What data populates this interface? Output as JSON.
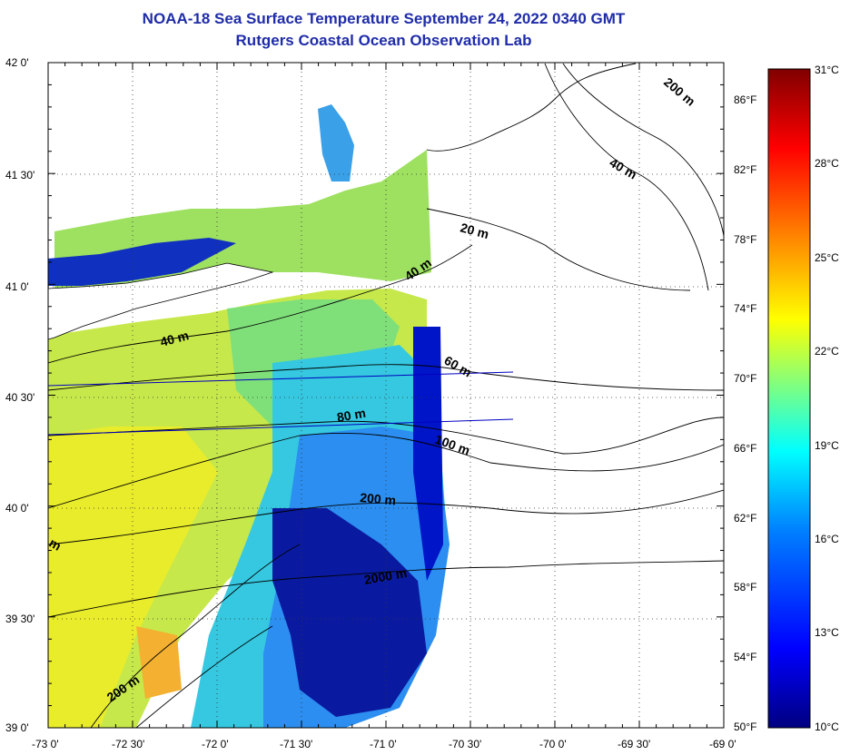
{
  "title": "NOAA-18 Sea Surface Temperature September 24, 2022 0340 GMT",
  "subtitle": "Rutgers Coastal Ocean Observation Lab",
  "lat_labels": [
    "42 0'",
    "41 30'",
    "41 0'",
    "40 30'",
    "40 0'",
    "39 30'",
    "39 0'"
  ],
  "lon_labels": [
    "-73 0'",
    "-72 30'",
    "-72 0'",
    "-71 30'",
    "-71 0'",
    "-70 30'",
    "-70 0'",
    "-69 30'",
    "-69 0'"
  ],
  "fahrenheit_labels": [
    "86°F",
    "82°F",
    "78°F",
    "74°F",
    "70°F",
    "66°F",
    "62°F",
    "58°F",
    "54°F",
    "50°F"
  ],
  "celsius_labels": [
    "31°C",
    "28°C",
    "25°C",
    "22°C",
    "19°C",
    "16°C",
    "13°C",
    "10°C"
  ],
  "contour_labels": [
    "200 m",
    "40 m",
    "20 m",
    "40 m",
    "40 m",
    "60 m",
    "80 m",
    "100 m",
    "200 m",
    "2000 m",
    "200 m",
    "m"
  ],
  "colorbar": {
    "min_c": 10,
    "max_c": 31,
    "stops": [
      "#000080",
      "#0000ff",
      "#0080ff",
      "#00ffff",
      "#80ff80",
      "#ffff00",
      "#ff8000",
      "#ff0000",
      "#800000"
    ]
  },
  "colors": {
    "title": "#1f2ca8",
    "land": "#ffffff",
    "contour": "#000000"
  }
}
